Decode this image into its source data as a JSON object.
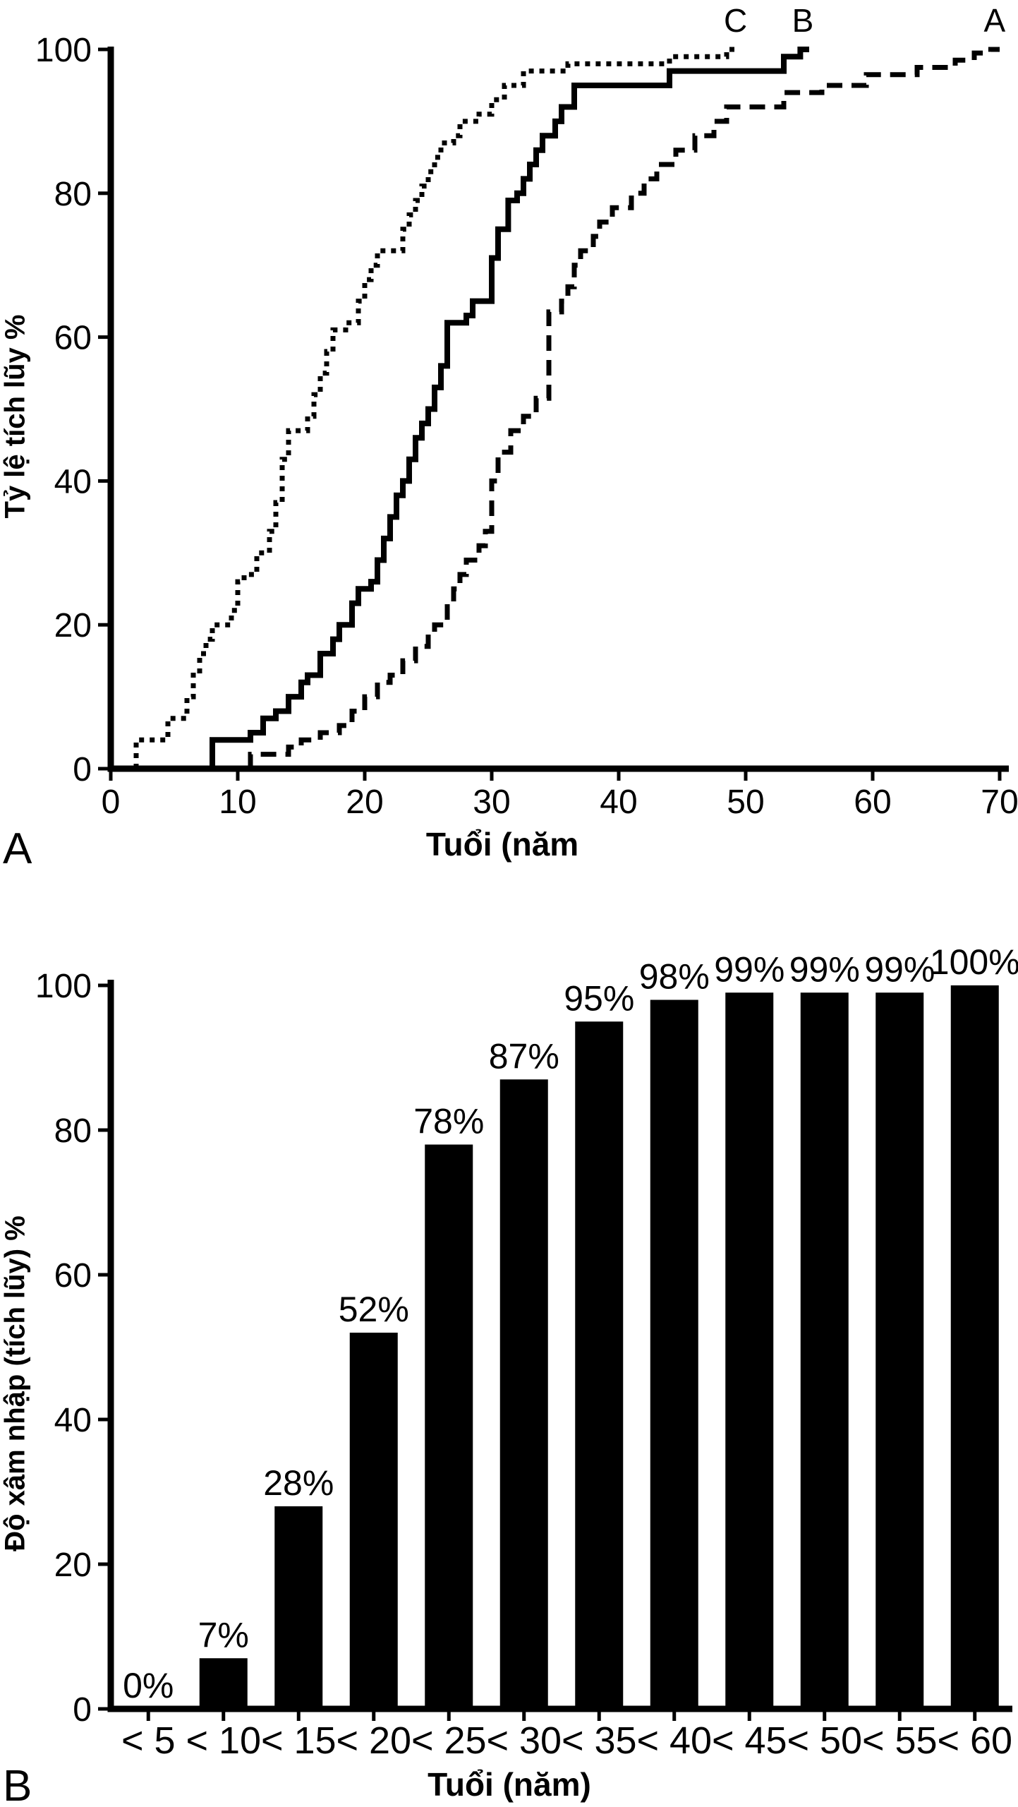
{
  "figure": {
    "background": "#ffffff",
    "ink": "#000000",
    "panels": [
      {
        "letter": "A"
      },
      {
        "letter": "B"
      }
    ]
  },
  "chart_data": [
    {
      "type": "line",
      "subtype": "step",
      "title": "",
      "xlabel": "Tuổi (năm",
      "ylabel": "Tỷ lệ tích lũy %",
      "xlim": [
        0,
        70
      ],
      "ylim": [
        0,
        100
      ],
      "x_ticks": [
        0,
        10,
        20,
        30,
        40,
        50,
        60,
        70
      ],
      "y_ticks": [
        0,
        20,
        40,
        60,
        80,
        100
      ],
      "grid": false,
      "legend": "curve end labels above plot",
      "series": [
        {
          "name": "C",
          "line_style": "dotted",
          "label_x": 49.2,
          "points": [
            [
              2,
              0
            ],
            [
              2,
              4
            ],
            [
              4.5,
              4
            ],
            [
              4.5,
              7
            ],
            [
              6,
              7
            ],
            [
              6,
              10
            ],
            [
              6.5,
              10
            ],
            [
              6.5,
              13
            ],
            [
              7,
              13
            ],
            [
              7,
              16
            ],
            [
              7.5,
              16
            ],
            [
              7.5,
              18
            ],
            [
              8,
              18
            ],
            [
              8,
              20
            ],
            [
              9.5,
              20
            ],
            [
              9.5,
              22
            ],
            [
              10,
              22
            ],
            [
              10,
              26
            ],
            [
              10.5,
              26
            ],
            [
              10.5,
              27
            ],
            [
              11.5,
              27
            ],
            [
              11.5,
              30
            ],
            [
              12.5,
              30
            ],
            [
              12.5,
              33
            ],
            [
              13,
              33
            ],
            [
              13,
              37
            ],
            [
              13.5,
              37
            ],
            [
              13.5,
              43
            ],
            [
              14,
              43
            ],
            [
              14,
              47
            ],
            [
              15.5,
              47
            ],
            [
              15.5,
              49
            ],
            [
              16,
              49
            ],
            [
              16,
              52
            ],
            [
              16.5,
              52
            ],
            [
              16.5,
              55
            ],
            [
              17,
              55
            ],
            [
              17,
              58
            ],
            [
              17.5,
              58
            ],
            [
              17.5,
              61
            ],
            [
              18.5,
              61
            ],
            [
              18.5,
              62
            ],
            [
              19.5,
              62
            ],
            [
              19.5,
              65
            ],
            [
              20,
              65
            ],
            [
              20,
              68
            ],
            [
              20.5,
              68
            ],
            [
              20.5,
              70
            ],
            [
              21,
              70
            ],
            [
              21,
              72
            ],
            [
              23,
              72
            ],
            [
              23,
              75
            ],
            [
              23.5,
              75
            ],
            [
              23.5,
              77
            ],
            [
              24,
              77
            ],
            [
              24,
              79
            ],
            [
              24.5,
              79
            ],
            [
              24.5,
              81
            ],
            [
              25,
              81
            ],
            [
              25,
              83
            ],
            [
              25.5,
              83
            ],
            [
              25.5,
              85
            ],
            [
              26,
              85
            ],
            [
              26,
              87
            ],
            [
              27,
              87
            ],
            [
              27,
              88
            ],
            [
              27.5,
              88
            ],
            [
              27.5,
              90
            ],
            [
              29,
              90
            ],
            [
              29,
              91
            ],
            [
              30,
              91
            ],
            [
              30,
              93
            ],
            [
              31,
              93
            ],
            [
              31,
              95
            ],
            [
              32.5,
              95
            ],
            [
              32.5,
              97
            ],
            [
              36,
              97
            ],
            [
              36,
              98
            ],
            [
              44,
              98
            ],
            [
              44,
              99
            ],
            [
              48.5,
              99
            ],
            [
              48.5,
              100
            ],
            [
              49.5,
              100
            ]
          ]
        },
        {
          "name": "B",
          "line_style": "solid",
          "label_x": 54.5,
          "points": [
            [
              8,
              0
            ],
            [
              8,
              4
            ],
            [
              11,
              4
            ],
            [
              11,
              5
            ],
            [
              12,
              5
            ],
            [
              12,
              7
            ],
            [
              13,
              7
            ],
            [
              13,
              8
            ],
            [
              14,
              8
            ],
            [
              14,
              10
            ],
            [
              15,
              10
            ],
            [
              15,
              12
            ],
            [
              15.5,
              12
            ],
            [
              15.5,
              13
            ],
            [
              16.5,
              13
            ],
            [
              16.5,
              16
            ],
            [
              17.5,
              16
            ],
            [
              17.5,
              18
            ],
            [
              18,
              18
            ],
            [
              18,
              20
            ],
            [
              19,
              20
            ],
            [
              19,
              23
            ],
            [
              19.5,
              23
            ],
            [
              19.5,
              25
            ],
            [
              20.5,
              25
            ],
            [
              20.5,
              26
            ],
            [
              21,
              26
            ],
            [
              21,
              29
            ],
            [
              21.5,
              29
            ],
            [
              21.5,
              32
            ],
            [
              22,
              32
            ],
            [
              22,
              35
            ],
            [
              22.5,
              35
            ],
            [
              22.5,
              38
            ],
            [
              23,
              38
            ],
            [
              23,
              40
            ],
            [
              23.5,
              40
            ],
            [
              23.5,
              43
            ],
            [
              24,
              43
            ],
            [
              24,
              46
            ],
            [
              24.5,
              46
            ],
            [
              24.5,
              48
            ],
            [
              25,
              48
            ],
            [
              25,
              50
            ],
            [
              25.5,
              50
            ],
            [
              25.5,
              53
            ],
            [
              26,
              53
            ],
            [
              26,
              56
            ],
            [
              26.5,
              56
            ],
            [
              26.5,
              62
            ],
            [
              28,
              62
            ],
            [
              28,
              63
            ],
            [
              28.5,
              63
            ],
            [
              28.5,
              65
            ],
            [
              30,
              65
            ],
            [
              30,
              71
            ],
            [
              30.5,
              71
            ],
            [
              30.5,
              75
            ],
            [
              31.3,
              75
            ],
            [
              31.3,
              79
            ],
            [
              32,
              79
            ],
            [
              32,
              80
            ],
            [
              32.5,
              80
            ],
            [
              32.5,
              82
            ],
            [
              33,
              82
            ],
            [
              33,
              84
            ],
            [
              33.5,
              84
            ],
            [
              33.5,
              86
            ],
            [
              34,
              86
            ],
            [
              34,
              88
            ],
            [
              35,
              88
            ],
            [
              35,
              90
            ],
            [
              35.5,
              90
            ],
            [
              35.5,
              92
            ],
            [
              36.5,
              92
            ],
            [
              36.5,
              95
            ],
            [
              44,
              95
            ],
            [
              44,
              97
            ],
            [
              53,
              97
            ],
            [
              53,
              99
            ],
            [
              54.3,
              99
            ],
            [
              54.3,
              100
            ],
            [
              55,
              100
            ]
          ]
        },
        {
          "name": "A",
          "line_style": "dashed",
          "label_x": 69.6,
          "points": [
            [
              11,
              0
            ],
            [
              11,
              2
            ],
            [
              14,
              2
            ],
            [
              14,
              3
            ],
            [
              15,
              3
            ],
            [
              15,
              4
            ],
            [
              16.5,
              4
            ],
            [
              16.5,
              5
            ],
            [
              18,
              5
            ],
            [
              18,
              6
            ],
            [
              19,
              6
            ],
            [
              19,
              8
            ],
            [
              20,
              8
            ],
            [
              20,
              10
            ],
            [
              21,
              10
            ],
            [
              21,
              12
            ],
            [
              22,
              12
            ],
            [
              22,
              13
            ],
            [
              23,
              13
            ],
            [
              23,
              15
            ],
            [
              24,
              15
            ],
            [
              24,
              17
            ],
            [
              25,
              17
            ],
            [
              25,
              19
            ],
            [
              25.5,
              19
            ],
            [
              25.5,
              20
            ],
            [
              26.5,
              20
            ],
            [
              26.5,
              23
            ],
            [
              27,
              23
            ],
            [
              27,
              25
            ],
            [
              27.5,
              25
            ],
            [
              27.5,
              27
            ],
            [
              28,
              27
            ],
            [
              28,
              29
            ],
            [
              29,
              29
            ],
            [
              29,
              31
            ],
            [
              29.5,
              31
            ],
            [
              29.5,
              33
            ],
            [
              30,
              33
            ],
            [
              30,
              40
            ],
            [
              30.5,
              40
            ],
            [
              30.5,
              44
            ],
            [
              31.5,
              44
            ],
            [
              31.5,
              47
            ],
            [
              32.5,
              47
            ],
            [
              32.5,
              49
            ],
            [
              33.5,
              49
            ],
            [
              33.5,
              51.5
            ],
            [
              34.5,
              51.5
            ],
            [
              34.5,
              63.5
            ],
            [
              35.5,
              63.5
            ],
            [
              35.5,
              65
            ],
            [
              36,
              65
            ],
            [
              36,
              67
            ],
            [
              36.5,
              67
            ],
            [
              36.5,
              70
            ],
            [
              37,
              70
            ],
            [
              37,
              72
            ],
            [
              38,
              72
            ],
            [
              38,
              74
            ],
            [
              38.5,
              74
            ],
            [
              38.5,
              76
            ],
            [
              39.5,
              76
            ],
            [
              39.5,
              78
            ],
            [
              41,
              78
            ],
            [
              41,
              80
            ],
            [
              42,
              80
            ],
            [
              42,
              82
            ],
            [
              43,
              82
            ],
            [
              43,
              84
            ],
            [
              44.5,
              84
            ],
            [
              44.5,
              86
            ],
            [
              46,
              86
            ],
            [
              46,
              88
            ],
            [
              47.5,
              88
            ],
            [
              47.5,
              90
            ],
            [
              48.5,
              90
            ],
            [
              48.5,
              92
            ],
            [
              53,
              92
            ],
            [
              53,
              94
            ],
            [
              56,
              94
            ],
            [
              56,
              95
            ],
            [
              59.5,
              95
            ],
            [
              59.5,
              96.5
            ],
            [
              63.5,
              96.5
            ],
            [
              63.5,
              97.5
            ],
            [
              66.5,
              97.5
            ],
            [
              66.5,
              98.5
            ],
            [
              68,
              98.5
            ],
            [
              68,
              99.5
            ],
            [
              69.3,
              99.5
            ],
            [
              69.3,
              100
            ],
            [
              70,
              100
            ]
          ]
        }
      ]
    },
    {
      "type": "bar",
      "title": "",
      "xlabel": "Tuổi (năm)",
      "ylabel": "Độ xâm nhập (tích lũy) %",
      "ylim": [
        0,
        100
      ],
      "y_ticks": [
        0,
        20,
        40,
        60,
        80,
        100
      ],
      "grid": false,
      "bar_color": "#000000",
      "categories": [
        "< 5",
        "< 10",
        "< 15",
        "< 20",
        "< 25",
        "< 30",
        "< 35",
        "< 40",
        "< 45",
        "< 50",
        "< 55",
        "< 60"
      ],
      "values": [
        0,
        7,
        28,
        52,
        78,
        87,
        95,
        98,
        99,
        99,
        99,
        100
      ],
      "bar_labels": [
        "0%",
        "7%",
        "28%",
        "52%",
        "78%",
        "87%",
        "95%",
        "98%",
        "99%",
        "99%",
        "99%",
        "100%"
      ]
    }
  ]
}
